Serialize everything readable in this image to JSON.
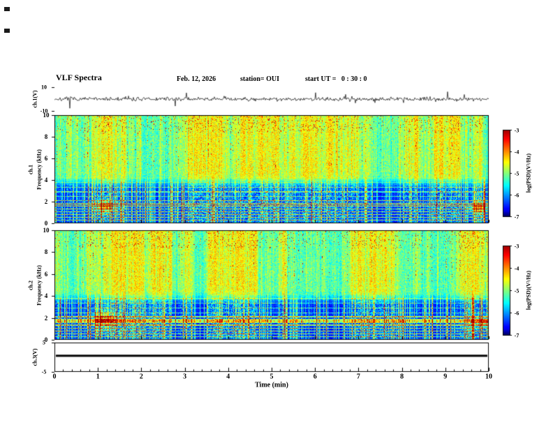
{
  "header": {
    "title": "VLF Spectra",
    "date": "Feb. 12, 2026",
    "station": "station= OUI",
    "start_ut": "start UT =   0 : 30 : 0"
  },
  "chart_data": {
    "type": "heatmap",
    "title": "VLF Spectra",
    "xlabel": "Time (min)",
    "x_range": [
      0,
      10
    ],
    "x_ticks": [
      0,
      1,
      2,
      3,
      4,
      5,
      6,
      7,
      8,
      9,
      10
    ],
    "colormap": "jet",
    "panels": [
      {
        "id": "ch1-waveform",
        "kind": "line",
        "ylabel": "ch.1(V)",
        "y_range": [
          -10,
          10
        ],
        "y_ticks": [
          10,
          -10
        ],
        "description": "Broadband ch.1 voltage waveform: noise band about 0 V with frequent impulsive spikes reaching roughly ±9 V over the 10 minute record"
      },
      {
        "id": "ch1-spectrogram",
        "kind": "spectrogram",
        "channel_label": "ch.1",
        "ylabel": "Frequency (kHz)",
        "y_range": [
          0,
          10
        ],
        "y_ticks": [
          0,
          2,
          4,
          6,
          8,
          10
        ],
        "description": "0-10 kHz spectrogram: strong green/yellow broadband power above ~4 kHz with dense vertical sferic striations and sparse red peaks near 6-10 kHz; dark blue background below ~4 kHz crossed by narrow horizontal harmonic lines below ~5 kHz and vertical sferic streaks; diffuse cyan patches near 1.1 min and 9.7 min around 1.5 kHz"
      },
      {
        "id": "ch2-spectrogram",
        "kind": "spectrogram",
        "channel_label": "ch.2",
        "ylabel": "Frequency (kHz)",
        "y_range": [
          0,
          10
        ],
        "y_ticks": [
          0,
          2,
          4,
          6,
          8,
          10
        ],
        "description": "Similar to ch.1: green/yellow striated broadband power above ~4 kHz, dark blue low-frequency band with horizontal harmonic lines and vertical streaks, diffuse cyan patches near 1.1 min and 9.8 min around 1.8 kHz"
      },
      {
        "id": "ch3-level",
        "kind": "line",
        "ylabel": "ch.3(V)",
        "y_range": [
          -5,
          5
        ],
        "y_ticks": [
          5,
          -5
        ],
        "line_value": 0.5,
        "description": "Constant thick black trace at about +0.5 V for the whole interval"
      }
    ],
    "colorbars": [
      {
        "id": "cb1",
        "label": "log(PSD)(V²/Hz)",
        "range": [
          -7,
          -3
        ],
        "ticks": [
          -3,
          -4,
          -5,
          -6,
          -7
        ]
      },
      {
        "id": "cb2",
        "label": "log(PSD)(V²/Hz)",
        "range": [
          -7,
          -3
        ],
        "ticks": [
          -3,
          -4,
          -5,
          -6,
          -7
        ]
      }
    ]
  }
}
